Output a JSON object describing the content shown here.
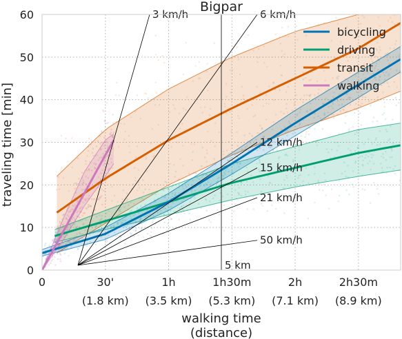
{
  "chart_data": {
    "type": "line",
    "title": "Bigpar",
    "xlabel": "walking time",
    "xlabel2": "(distance)",
    "ylabel": "traveling time [min]",
    "xlim": [
      0,
      170
    ],
    "ylim": [
      0,
      60
    ],
    "xticks": [
      {
        "value": 0,
        "label": "0",
        "sublabel": ""
      },
      {
        "value": 30,
        "label": "30'",
        "sublabel": "(1.8 km)"
      },
      {
        "value": 60,
        "label": "1h",
        "sublabel": "(3.5 km)"
      },
      {
        "value": 90,
        "label": "1h30m",
        "sublabel": "(5.3 km)"
      },
      {
        "value": 120,
        "label": "2h",
        "sublabel": "(7.1 km)"
      },
      {
        "value": 150,
        "label": "2h30m",
        "sublabel": "(8.9 km)"
      }
    ],
    "yticks": [
      0,
      10,
      20,
      30,
      40,
      50,
      60
    ],
    "grid": true,
    "legend_position": "top-right",
    "colors": {
      "bicycling": "#0173b2",
      "driving": "#029e73",
      "transit": "#d55e00",
      "walking": "#cc78bc",
      "reference": "#000000"
    },
    "series": [
      {
        "name": "bicycling",
        "x": [
          0,
          30,
          60,
          90,
          120,
          150,
          170
        ],
        "median": [
          4,
          8.5,
          16,
          25,
          34.5,
          43.5,
          49.5
        ],
        "low": [
          3.3,
          7.2,
          14,
          22.5,
          31.5,
          40.5,
          46.5
        ],
        "high": [
          4.8,
          10,
          18,
          27.5,
          37.5,
          46.5,
          52.5
        ]
      },
      {
        "name": "driving",
        "x": [
          6,
          30,
          60,
          90,
          120,
          150,
          170
        ],
        "median": [
          8,
          11.5,
          16,
          20.5,
          24,
          27.5,
          29.3
        ],
        "low": [
          6.5,
          9.5,
          13,
          16.5,
          19.5,
          22,
          23.5
        ],
        "high": [
          9.5,
          14,
          19.5,
          25,
          29,
          33,
          34.5
        ]
      },
      {
        "name": "transit",
        "x": [
          7,
          30,
          60,
          90,
          120,
          150,
          170
        ],
        "median": [
          13.5,
          21.5,
          30.5,
          38,
          45,
          52,
          58
        ],
        "low": [
          4,
          11,
          20,
          27,
          33,
          38,
          42
        ],
        "high": [
          22,
          33,
          42.5,
          50,
          56,
          60,
          61
        ]
      },
      {
        "name": "walking",
        "x": [
          0,
          10,
          20,
          30,
          34
        ],
        "median": [
          0,
          9,
          18,
          27,
          30.5
        ],
        "low": [
          0,
          7,
          15,
          22,
          25
        ],
        "high": [
          0,
          12,
          23,
          30.5,
          32
        ]
      }
    ],
    "speed_lines": [
      {
        "label": "3 km/h",
        "x0": 17,
        "x1": 51,
        "y1": 60
      },
      {
        "label": "6 km/h",
        "x0": 17,
        "x1": 102,
        "y1": 60
      },
      {
        "label": "12 km/h",
        "x0": 17,
        "x1": 102,
        "y1": 30
      },
      {
        "label": "15 km/h",
        "x0": 17,
        "x1": 102,
        "y1": 24
      },
      {
        "label": "21 km/h",
        "x0": 17,
        "x1": 102,
        "y1": 17
      },
      {
        "label": "50 km/h",
        "x0": 17,
        "x1": 102,
        "y1": 7
      }
    ],
    "vline": {
      "x": 85,
      "label": "5 km"
    }
  }
}
